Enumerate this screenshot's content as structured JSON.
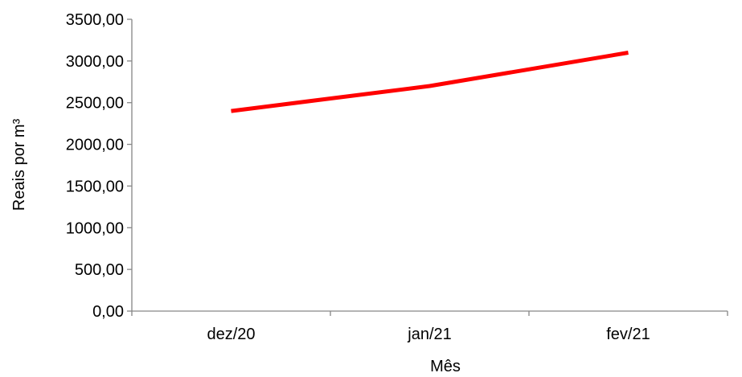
{
  "chart_data": {
    "type": "line",
    "title": "",
    "xlabel": "Mês",
    "ylabel": "Reais por m³",
    "categories": [
      "dez/20",
      "jan/21",
      "fev/21"
    ],
    "series": [
      {
        "values": [
          2400,
          2700,
          3100
        ],
        "color": "#ff0000"
      }
    ],
    "ylim": [
      0,
      3500
    ],
    "yticks": [
      0,
      500,
      1000,
      1500,
      2000,
      2500,
      3000,
      3500
    ],
    "ytick_labels": [
      "0,00",
      "500,00",
      "1000,00",
      "1500,00",
      "2000,00",
      "2500,00",
      "3000,00",
      "3500,00"
    ],
    "grid": false,
    "legend": "none"
  }
}
